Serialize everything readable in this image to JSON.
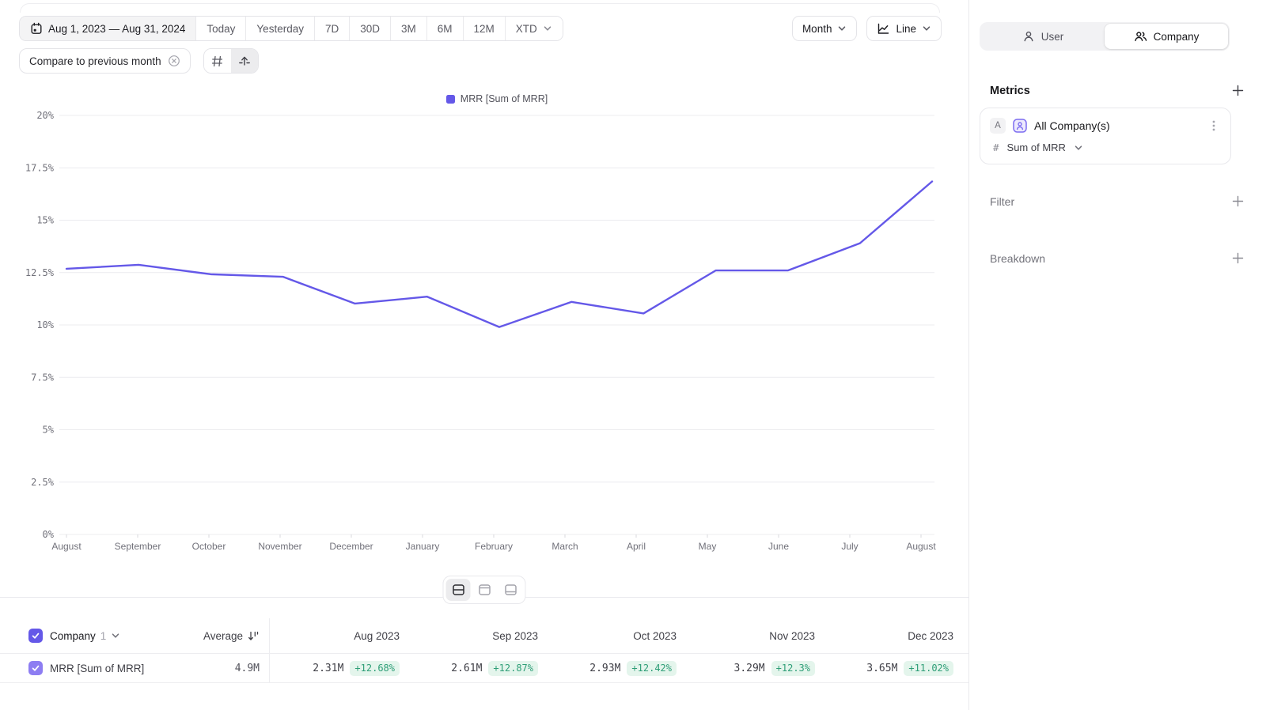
{
  "toolbar": {
    "date_range": "Aug 1, 2023 — Aug 31, 2024",
    "presets": [
      "Today",
      "Yesterday",
      "7D",
      "30D",
      "3M",
      "6M",
      "12M"
    ],
    "xtd": "XTD",
    "compare_chip": "Compare to previous month",
    "granularity": "Month",
    "chart_type": "Line"
  },
  "sidebar": {
    "tabs": [
      {
        "label": "User",
        "active": false
      },
      {
        "label": "Company",
        "active": true
      }
    ],
    "metrics": {
      "title": "Metrics",
      "badge": "A",
      "metric_name": "All Company(s)",
      "agg_prefix": "#",
      "aggregation": "Sum of MRR"
    },
    "filter_label": "Filter",
    "breakdown_label": "Breakdown"
  },
  "chart_data": {
    "type": "line",
    "title": "",
    "legend": "MRR [Sum of MRR]",
    "legend_position": "top-center",
    "grid": true,
    "x_labels": [
      "August",
      "September",
      "October",
      "November",
      "December",
      "January",
      "February",
      "March",
      "April",
      "May",
      "June",
      "July",
      "August"
    ],
    "series": [
      {
        "name": "MRR [Sum of MRR]",
        "color": "#6458e8",
        "values": [
          12.68,
          12.87,
          12.42,
          12.3,
          11.02,
          11.35,
          9.9,
          11.1,
          10.55,
          12.6,
          12.6,
          13.9,
          16.85
        ]
      }
    ],
    "ylim": [
      0,
      20
    ],
    "y_tick_step": 2.5,
    "y_tick_labels": [
      "0%",
      "2.5%",
      "5%",
      "7.5%",
      "10%",
      "12.5%",
      "15%",
      "17.5%",
      "20%"
    ]
  },
  "table": {
    "group_label": "Company",
    "group_count": "1",
    "average_label": "Average",
    "columns": [
      "Aug 2023",
      "Sep 2023",
      "Oct 2023",
      "Nov 2023",
      "Dec 2023"
    ],
    "rows": [
      {
        "name": "MRR [Sum of MRR]",
        "average": "4.9M",
        "cells": [
          {
            "value": "2.31M",
            "delta": "+12.68%"
          },
          {
            "value": "2.61M",
            "delta": "+12.87%"
          },
          {
            "value": "2.93M",
            "delta": "+12.42%"
          },
          {
            "value": "3.29M",
            "delta": "+12.3%"
          },
          {
            "value": "3.65M",
            "delta": "+11.02%"
          }
        ]
      }
    ]
  },
  "colors": {
    "accent": "#6458e8",
    "row_checkbox": "#8d7df2",
    "delta_bg": "#e4f5ec",
    "delta_text": "#2e9e77"
  }
}
